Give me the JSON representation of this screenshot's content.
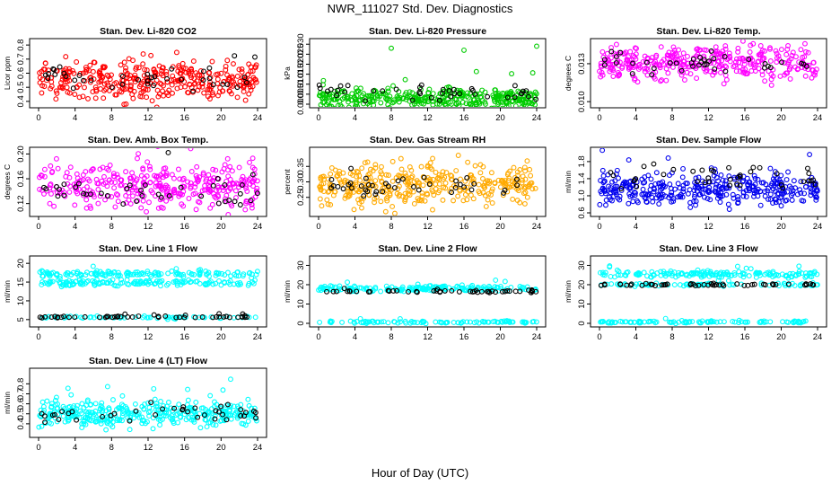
{
  "figure_title": "NWR_111027  Std. Dev. Diagnostics",
  "x_axis_label": "Hour of Day (UTC)",
  "colors": {
    "black_points": "#000000",
    "axis": "#000000"
  },
  "chart_data": [
    {
      "type": "scatter",
      "title": "Stan. Dev. Li-820 CO2",
      "ylabel": "Licor ppm",
      "xlim": [
        0,
        24
      ],
      "ylim": [
        0.38,
        0.82
      ],
      "xticks": [
        0,
        4,
        8,
        12,
        16,
        20,
        24
      ],
      "yticks": [
        0.4,
        0.5,
        0.6,
        0.7,
        0.8
      ],
      "ytick_labels": [
        "0.4",
        "0.5",
        "0.6",
        "0.7",
        "0.8"
      ],
      "color": "#ff0000",
      "series": [
        {
          "name": "all samples",
          "color": "#ff0000",
          "center": 0.55,
          "spread": 0.13,
          "count": 360
        },
        {
          "name": "black samples",
          "color": "#000000",
          "center": 0.55,
          "spread": 0.09,
          "count": 40
        }
      ]
    },
    {
      "type": "scatter",
      "title": "Stan. Dev. Li-820 Pressure",
      "ylabel": "kPa",
      "xlim": [
        0,
        24
      ],
      "ylim": [
        0,
        0.031
      ],
      "xticks": [
        0,
        4,
        8,
        12,
        16,
        20,
        24
      ],
      "yticks": [
        0,
        0.005,
        0.01,
        0.015,
        0.02,
        0.025,
        0.03
      ],
      "ytick_labels": [
        "0.000",
        "0.005",
        "0.010",
        "0.015",
        "0.020",
        "0.025",
        "0.030"
      ],
      "color": "#00cc00",
      "series": [
        {
          "name": "all samples",
          "color": "#00cc00",
          "center": 0.003,
          "spread": 0.005,
          "count": 360
        },
        {
          "name": "black samples",
          "color": "#000000",
          "center": 0.006,
          "spread": 0.004,
          "count": 40
        }
      ],
      "outliers": [
        {
          "x": 8,
          "y": 0.028
        },
        {
          "x": 16,
          "y": 0.027
        },
        {
          "x": 24,
          "y": 0.029
        }
      ]
    },
    {
      "type": "scatter",
      "title": "Stan. Dev. Li-820 Temp.",
      "ylabel": "degrees C",
      "xlim": [
        0,
        24
      ],
      "ylim": [
        0.0098,
        0.0147
      ],
      "xticks": [
        0,
        4,
        8,
        12,
        16,
        20,
        24
      ],
      "yticks": [
        0.01,
        0.013
      ],
      "ytick_labels": [
        "0.010",
        "0.013"
      ],
      "color": "#ff00ff",
      "series": [
        {
          "name": "all samples",
          "color": "#ff00ff",
          "center": 0.0131,
          "spread": 0.0014,
          "count": 360
        },
        {
          "name": "black samples",
          "color": "#000000",
          "center": 0.0131,
          "spread": 0.0009,
          "count": 40
        }
      ]
    },
    {
      "type": "scatter",
      "title": "Stan. Dev. Amb. Box Temp.",
      "ylabel": "degrees C",
      "xlim": [
        0,
        24
      ],
      "ylim": [
        0.105,
        0.205
      ],
      "xticks": [
        0,
        4,
        8,
        12,
        16,
        20,
        24
      ],
      "yticks": [
        0.12,
        0.16,
        0.2
      ],
      "ytick_labels": [
        "0.12",
        "0.16",
        "0.20"
      ],
      "color": "#ff00ff",
      "series": [
        {
          "name": "all samples",
          "color": "#ff00ff",
          "center": 0.148,
          "spread": 0.035,
          "count": 360
        },
        {
          "name": "black samples",
          "color": "#000000",
          "center": 0.138,
          "spread": 0.025,
          "count": 40
        }
      ]
    },
    {
      "type": "scatter",
      "title": "Stan. Dev. Gas Stream RH",
      "ylabel": "percent",
      "xlim": [
        0,
        24
      ],
      "ylim": [
        0.2,
        0.4
      ],
      "xticks": [
        0,
        4,
        8,
        12,
        16,
        20,
        24
      ],
      "yticks": [
        0.25,
        0.3,
        0.35
      ],
      "ytick_labels": [
        "0.25",
        "0.30",
        "0.35"
      ],
      "color": "#ffaa00",
      "series": [
        {
          "name": "all samples",
          "color": "#ffaa00",
          "center": 0.29,
          "spread": 0.07,
          "count": 360
        },
        {
          "name": "black samples",
          "color": "#000000",
          "center": 0.285,
          "spread": 0.04,
          "count": 40
        }
      ]
    },
    {
      "type": "scatter",
      "title": "Stan. Dev. Sample Flow",
      "ylabel": "ml/min",
      "xlim": [
        0,
        24
      ],
      "ylim": [
        0.6,
        2.05
      ],
      "xticks": [
        0,
        4,
        8,
        12,
        16,
        20,
        24
      ],
      "yticks": [
        0.6,
        1.0,
        1.4,
        1.8
      ],
      "ytick_labels": [
        "0.6",
        "1.0",
        "1.4",
        "1.8"
      ],
      "color": "#0000ee",
      "series": [
        {
          "name": "all samples",
          "color": "#0000ee",
          "center": 1.15,
          "spread": 0.35,
          "count": 360
        },
        {
          "name": "black samples",
          "color": "#000000",
          "center": 1.45,
          "spread": 0.3,
          "count": 40
        }
      ]
    },
    {
      "type": "scatter",
      "title": "Stan. Dev. Line 1 Flow",
      "ylabel": "ml/min",
      "xlim": [
        0,
        24
      ],
      "ylim": [
        4,
        21
      ],
      "xticks": [
        0,
        4,
        8,
        12,
        16,
        20,
        24
      ],
      "yticks": [
        5,
        10,
        15,
        20
      ],
      "ytick_labels": [
        "5",
        "10",
        "15",
        "20"
      ],
      "color": "#00ffff",
      "series": [
        {
          "name": "upper band",
          "color": "#00ffff",
          "center": 17.2,
          "spread": 0.8,
          "count": 140
        },
        {
          "name": "middle band",
          "color": "#00ffff",
          "center": 14.8,
          "spread": 0.8,
          "count": 140
        },
        {
          "name": "lower band",
          "color": "#00ffff",
          "center": 5.6,
          "spread": 0.4,
          "count": 60
        },
        {
          "name": "black samples",
          "color": "#000000",
          "center": 5.7,
          "spread": 0.3,
          "count": 50
        }
      ]
    },
    {
      "type": "scatter",
      "title": "Stan. Dev. Line 2 Flow",
      "ylabel": "ml/min",
      "xlim": [
        0,
        24
      ],
      "ylim": [
        0,
        33
      ],
      "xticks": [
        0,
        4,
        8,
        12,
        16,
        20,
        24
      ],
      "yticks": [
        0,
        10,
        20,
        30
      ],
      "ytick_labels": [
        "0",
        "10",
        "20",
        "30"
      ],
      "color": "#00ffff",
      "series": [
        {
          "name": "upper band",
          "color": "#00ffff",
          "center": 18.0,
          "spread": 1.5,
          "count": 180
        },
        {
          "name": "lower band",
          "color": "#00ffff",
          "center": 0.6,
          "spread": 0.6,
          "count": 100
        },
        {
          "name": "black samples",
          "color": "#000000",
          "center": 16.5,
          "spread": 0.6,
          "count": 50
        }
      ]
    },
    {
      "type": "scatter",
      "title": "Stan. Dev. Line 3 Flow",
      "ylabel": "ml/min",
      "xlim": [
        0,
        24
      ],
      "ylim": [
        0,
        33
      ],
      "xticks": [
        0,
        4,
        8,
        12,
        16,
        20,
        24
      ],
      "yticks": [
        0,
        10,
        20,
        30
      ],
      "ytick_labels": [
        "0",
        "10",
        "20",
        "30"
      ],
      "color": "#00ffff",
      "series": [
        {
          "name": "upper band",
          "color": "#00ffff",
          "center": 25.5,
          "spread": 1.6,
          "count": 160
        },
        {
          "name": "middle band",
          "color": "#00ffff",
          "center": 20.0,
          "spread": 0.8,
          "count": 80
        },
        {
          "name": "lower band",
          "color": "#00ffff",
          "center": 0.7,
          "spread": 0.6,
          "count": 100
        },
        {
          "name": "black samples",
          "color": "#000000",
          "center": 20.0,
          "spread": 0.6,
          "count": 50
        }
      ]
    },
    {
      "type": "scatter",
      "title": "Stan. Dev. Line 4 (LT) Flow",
      "ylabel": "ml/min",
      "xlim": [
        0,
        24
      ],
      "ylim": [
        0.3,
        0.92
      ],
      "xticks": [
        0,
        4,
        8,
        12,
        16,
        20,
        24
      ],
      "yticks": [
        0.4,
        0.5,
        0.6,
        0.7,
        0.8
      ],
      "ytick_labels": [
        "0.4",
        "0.5",
        "0.6",
        "0.7",
        "0.8"
      ],
      "color": "#00ffff",
      "series": [
        {
          "name": "all samples",
          "color": "#00ffff",
          "center": 0.5,
          "spread": 0.13,
          "count": 360
        },
        {
          "name": "black samples",
          "color": "#000000",
          "center": 0.5,
          "spread": 0.08,
          "count": 40
        }
      ]
    }
  ]
}
